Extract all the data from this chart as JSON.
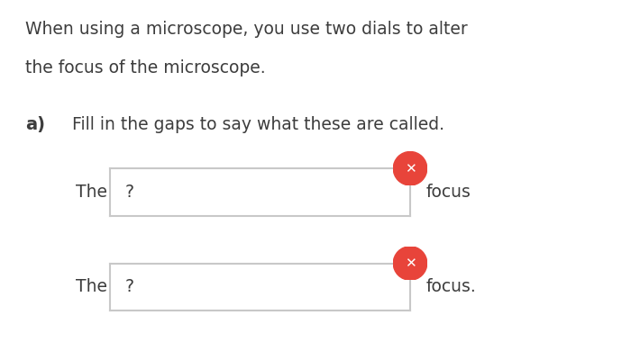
{
  "background_color": "#ffffff",
  "title_text_line1": "When using a microscope, you use two dials to alter",
  "title_text_line2": "the focus of the microscope.",
  "subtitle_bold": "a)",
  "subtitle_text": "Fill in the gaps to say what these are called.",
  "the_label": "The",
  "question_mark": "?",
  "focus_label1": "focus",
  "focus_label2": "focus.",
  "box_color": "#ffffff",
  "box_edge_color": "#c8c8c8",
  "text_color": "#3d3d3d",
  "circle_color": "#e8443a",
  "circle_x_color": "#ffffff",
  "font_size_body": 13.5,
  "font_size_bold": 14
}
